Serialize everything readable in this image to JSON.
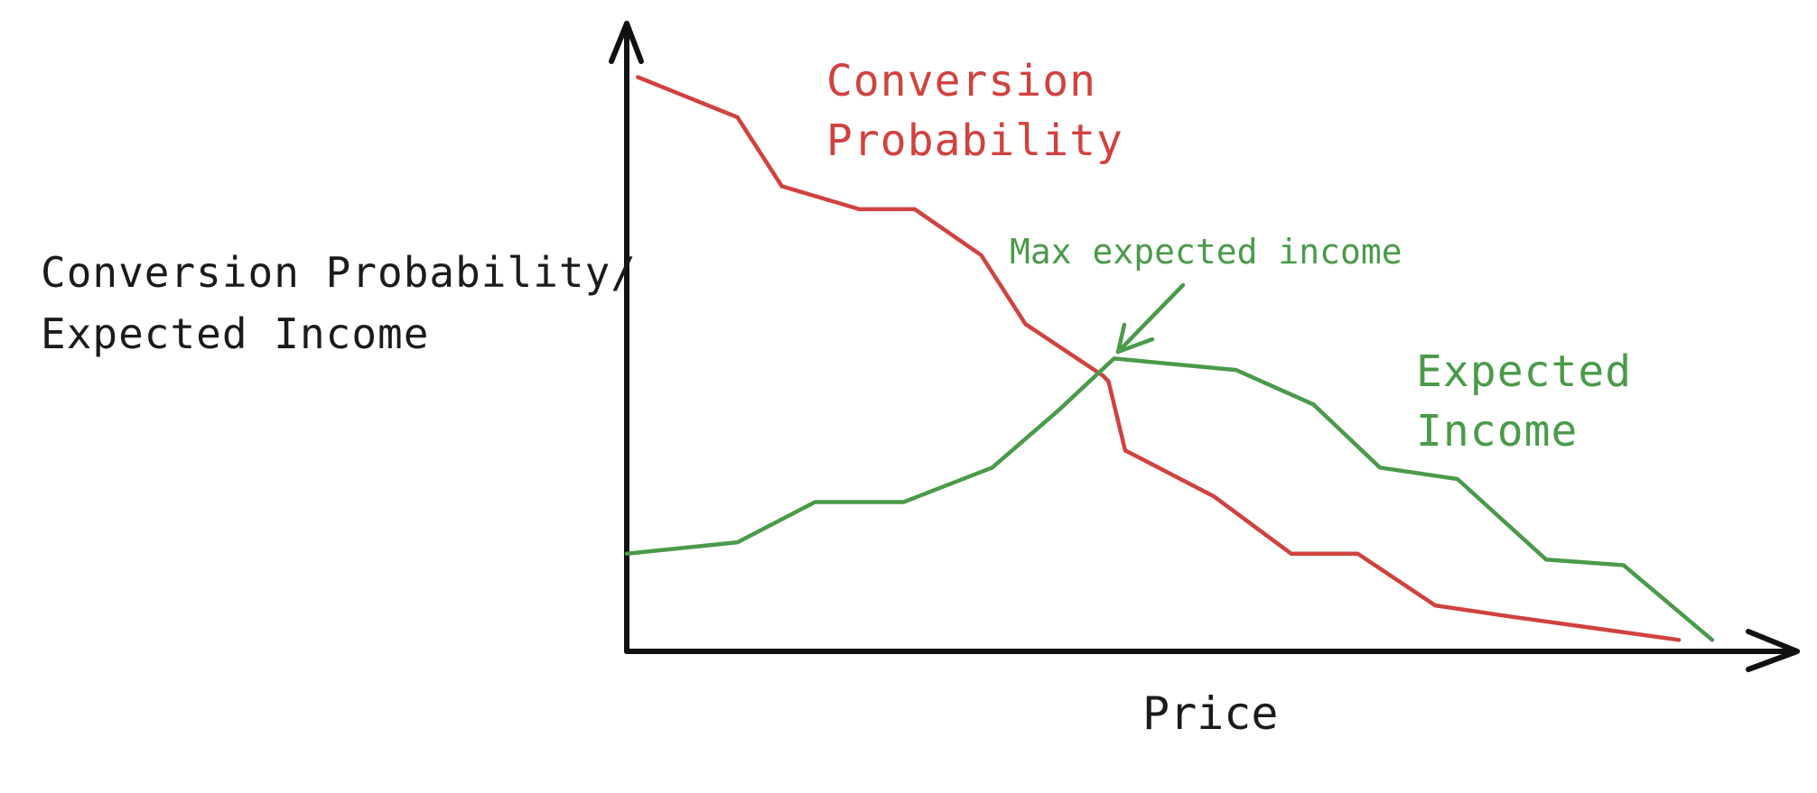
{
  "chart_data": {
    "type": "line",
    "title": "",
    "xlabel": "Price",
    "ylabel": [
      "Conversion Probability/",
      "Expected Income"
    ],
    "x": [
      0.1,
      1,
      1.4,
      2.1,
      2.6,
      3.2,
      3.6,
      4.3,
      4.5,
      5.3,
      6,
      6.6,
      7.3,
      8,
      8.6,
      9.5,
      10
    ],
    "xlim": [
      0,
      10.2
    ],
    "ylim": [
      0,
      10.4
    ],
    "grid": false,
    "ticks_labeled": false,
    "series": [
      {
        "name": "Conversion Probability",
        "color": "#d0423f",
        "x": [
          0.1,
          1.0,
          1.4,
          2.1,
          2.6,
          3.2,
          3.6,
          4.3,
          4.35,
          4.5,
          5.3,
          6.0,
          6.6,
          7.3,
          8.0,
          9.5
        ],
        "values": [
          10.0,
          9.3,
          8.1,
          7.7,
          7.7,
          6.9,
          5.7,
          4.8,
          4.7,
          3.5,
          2.7,
          1.7,
          1.7,
          0.8,
          0.6,
          0.2
        ]
      },
      {
        "name": "Expected Income",
        "color": "#4a9a4a",
        "x": [
          0,
          1.0,
          1.7,
          2.5,
          3.3,
          3.9,
          4.4,
          5.5,
          6.2,
          6.8,
          7.5,
          8.3,
          9.0,
          9.8
        ],
        "values": [
          1.7,
          1.9,
          2.6,
          2.6,
          3.2,
          4.2,
          5.1,
          4.9,
          4.3,
          3.2,
          3.0,
          1.6,
          1.5,
          0.2
        ]
      }
    ],
    "series_labels": {
      "conversion": [
        "Conversion",
        "Probability"
      ],
      "income": [
        "Expected",
        "Income"
      ]
    },
    "annotations": [
      {
        "text": "Max expected income",
        "color": "#4a9a4a",
        "points_to": {
          "series": "Expected Income",
          "x": 4.4,
          "y": 5.1
        }
      }
    ]
  }
}
